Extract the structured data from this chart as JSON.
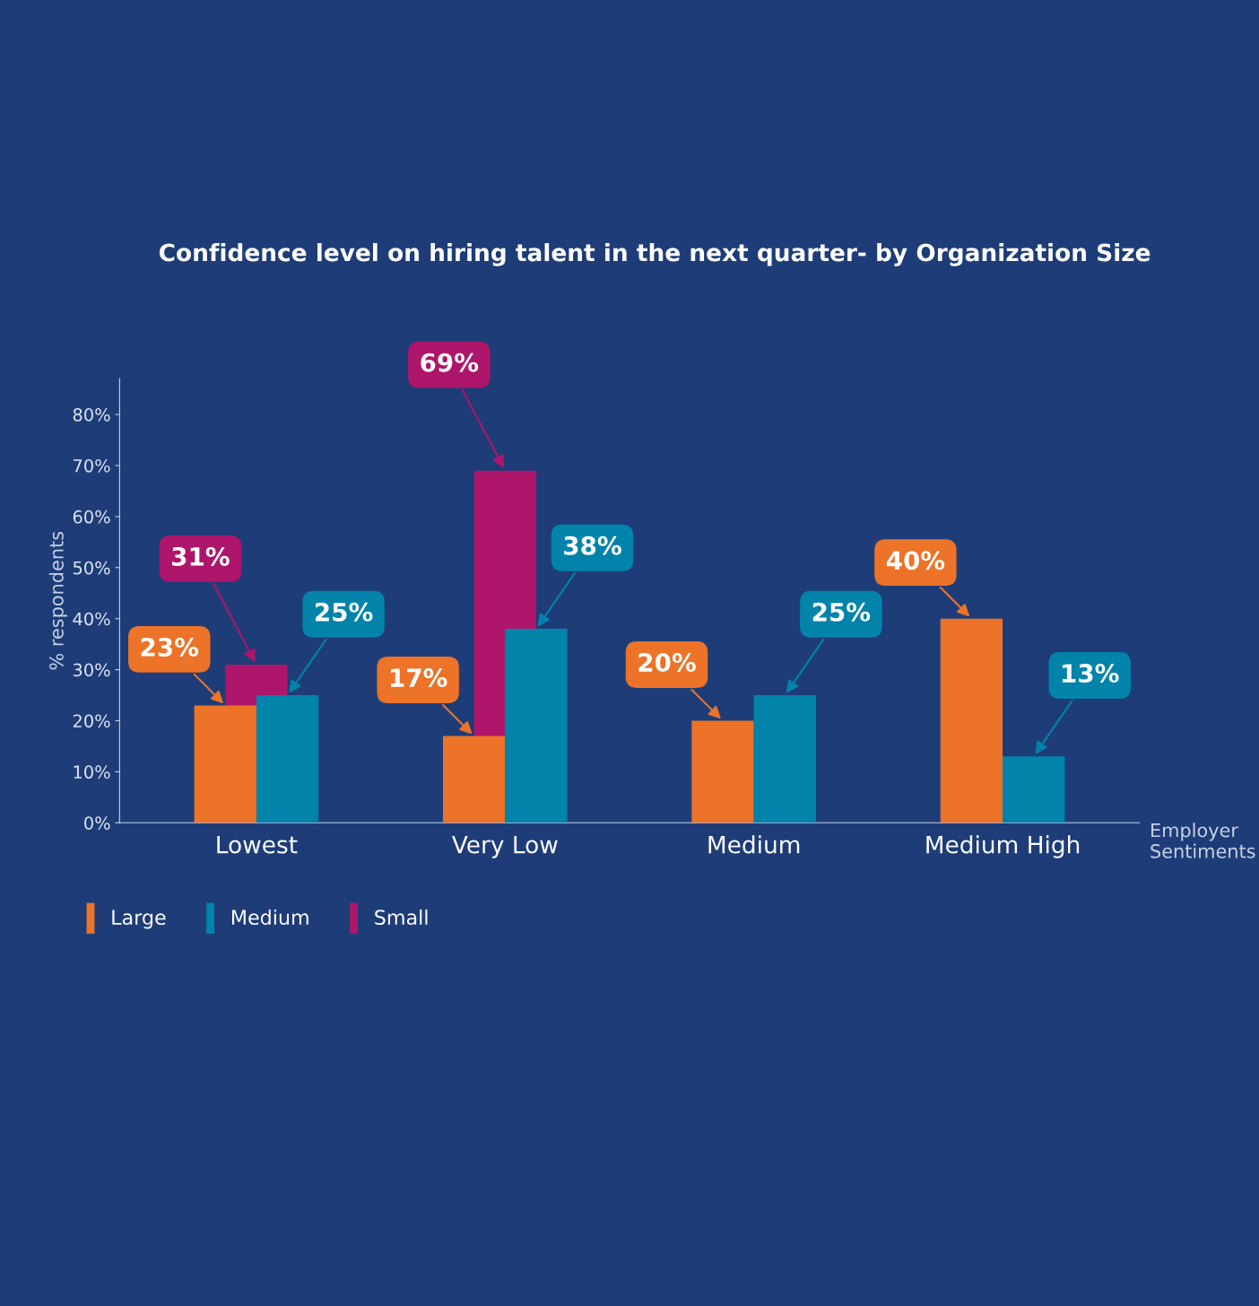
{
  "chart_data": {
    "type": "bar",
    "title": "Confidence level on hiring talent in the next quarter- by Organization Size",
    "categories": [
      "Lowest",
      "Very Low",
      "Medium",
      "Medium High"
    ],
    "series": [
      {
        "name": "Large",
        "color": "#ec7328",
        "values": [
          23,
          17,
          20,
          40
        ],
        "value_labels": [
          "23%",
          "17%",
          "20%",
          "40%"
        ]
      },
      {
        "name": "Medium",
        "color": "#0283aa",
        "values": [
          25,
          38,
          25,
          13
        ],
        "value_labels": [
          "25%",
          "38%",
          "25%",
          "13%"
        ]
      },
      {
        "name": "Small",
        "color": "#ad166b",
        "values": [
          31,
          69,
          null,
          null
        ],
        "value_labels": [
          "31%",
          "69%",
          null,
          null
        ]
      }
    ],
    "xlabel": "Employer Sentiments",
    "ylabel": "% respondents",
    "ylim": [
      0,
      87
    ],
    "yticks": [
      {
        "value": 0,
        "label": "0%"
      },
      {
        "value": 10,
        "label": "10%"
      },
      {
        "value": 20,
        "label": "20%"
      },
      {
        "value": 30,
        "label": "30%"
      },
      {
        "value": 40,
        "label": "40%"
      },
      {
        "value": 50,
        "label": "50%"
      },
      {
        "value": 60,
        "label": "60%"
      },
      {
        "value": 70,
        "label": "70%"
      },
      {
        "value": 80,
        "label": "80%"
      }
    ],
    "legend": "bottom left",
    "grid": false
  }
}
